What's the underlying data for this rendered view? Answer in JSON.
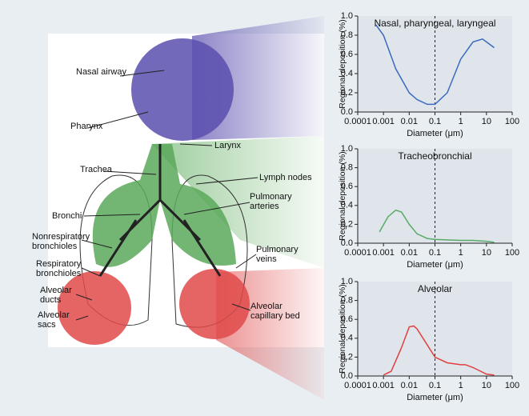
{
  "illustration": {
    "labels": [
      [
        "Nasal airway"
      ],
      [
        "Pharynx"
      ],
      [
        "Larynx"
      ],
      [
        "Trachea"
      ],
      [
        "Lymph nodes"
      ],
      [
        "Pulmonary",
        "arteries"
      ],
      [
        "Bronchi"
      ],
      [
        "Nonrespiratory",
        "bronchioles"
      ],
      [
        "Respiratory",
        "bronchioles"
      ],
      [
        "Alveolar",
        "ducts"
      ],
      [
        "Alveolar",
        "sacs"
      ],
      [
        "Pulmonary",
        "veins"
      ],
      [
        "Alveolar",
        "capillary bed"
      ]
    ]
  },
  "chart_data": [
    {
      "type": "line",
      "title": "Nasal, pharyngeal, laryngeal",
      "x_label": "Diameter (μm)",
      "y_label": "Regional deposition (%)",
      "log_x": true,
      "x": [
        0.0005,
        0.001,
        0.003,
        0.01,
        0.02,
        0.05,
        0.1,
        0.3,
        1,
        3,
        7,
        10,
        20
      ],
      "series": [
        {
          "color": "#3a6bbf",
          "values": [
            0.91,
            0.8,
            0.45,
            0.2,
            0.13,
            0.08,
            0.08,
            0.2,
            0.55,
            0.73,
            0.76,
            0.73,
            0.67
          ]
        }
      ],
      "xlim": [
        0.0001,
        100
      ],
      "xticks": [
        0.0001,
        0.001,
        0.01,
        0.1,
        1,
        10,
        100
      ],
      "ylim": [
        0,
        1
      ],
      "yticks": [
        {
          "value": 0,
          "label": "0.0"
        },
        0.2,
        0.4,
        0.6,
        0.8,
        {
          "value": 1,
          "label": "1.0"
        }
      ],
      "vline": 0.1
    },
    {
      "type": "line",
      "title": "Tracheobronchial",
      "x_label": "Diameter (μm)",
      "y_label": "Regional deposition (%)",
      "log_x": true,
      "x": [
        0.0007,
        0.0015,
        0.003,
        0.005,
        0.01,
        0.02,
        0.05,
        0.1,
        0.3,
        1,
        3,
        10,
        20
      ],
      "series": [
        {
          "color": "#5aaa6a",
          "values": [
            0.12,
            0.28,
            0.35,
            0.33,
            0.2,
            0.1,
            0.05,
            0.04,
            0.035,
            0.03,
            0.03,
            0.02,
            0.01
          ]
        }
      ],
      "xlim": [
        0.0001,
        100
      ],
      "xticks": [
        0.0001,
        0.001,
        0.01,
        0.1,
        1,
        10,
        100
      ],
      "ylim": [
        0,
        1
      ],
      "yticks": [
        {
          "value": 0,
          "label": "0.0"
        },
        0.2,
        0.4,
        0.6,
        0.8,
        {
          "value": 1,
          "label": "1.0"
        }
      ],
      "vline": 0.1
    },
    {
      "type": "line",
      "title": "Alveolar",
      "x_label": "Diameter (μm)",
      "y_label": "Regional deposition (%)",
      "log_x": true,
      "x": [
        0.001,
        0.002,
        0.005,
        0.01,
        0.015,
        0.02,
        0.05,
        0.1,
        0.3,
        1,
        1.5,
        3,
        10,
        20
      ],
      "series": [
        {
          "color": "#e04040",
          "values": [
            0.01,
            0.05,
            0.3,
            0.52,
            0.53,
            0.5,
            0.33,
            0.2,
            0.14,
            0.12,
            0.12,
            0.09,
            0.02,
            0.01
          ]
        }
      ],
      "xlim": [
        0.0001,
        100
      ],
      "xticks": [
        0.0001,
        0.001,
        0.01,
        0.1,
        1,
        10,
        100
      ],
      "ylim": [
        0,
        1
      ],
      "yticks": [
        {
          "value": 0,
          "label": "0.0"
        },
        0.2,
        0.4,
        0.6,
        0.8,
        {
          "value": 1,
          "label": "1.0"
        }
      ],
      "vline": 0.1
    }
  ]
}
